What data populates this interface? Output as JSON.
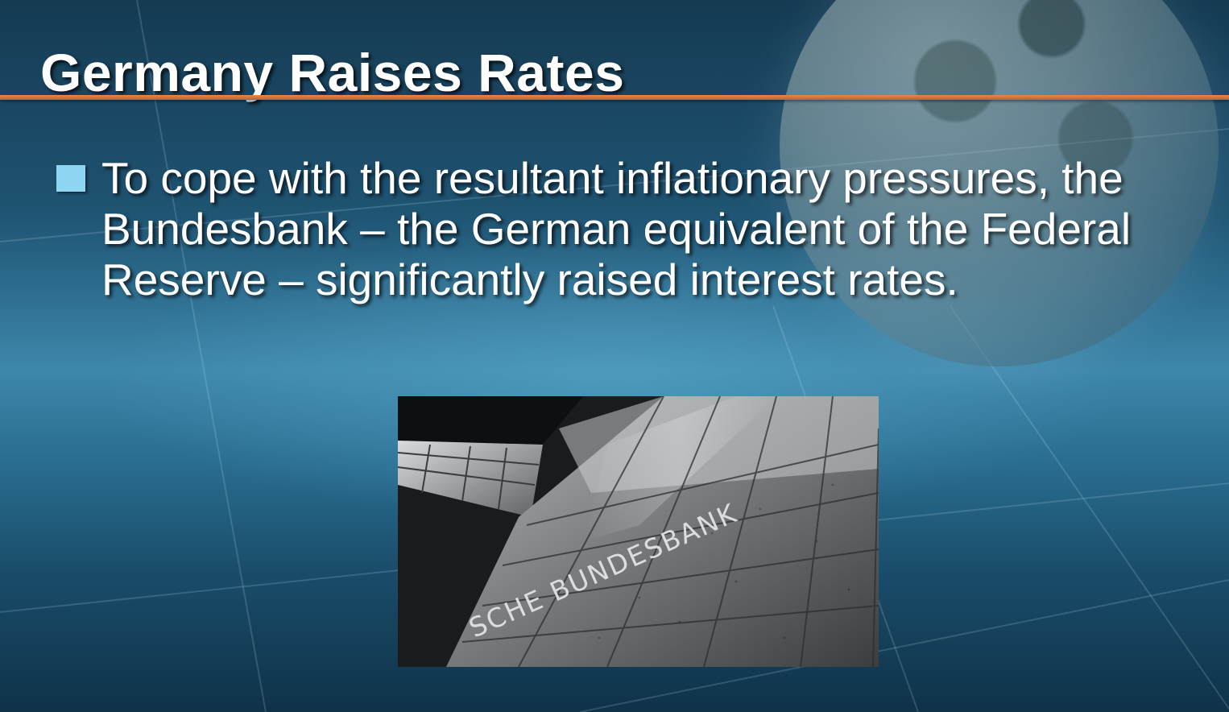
{
  "slide": {
    "title": "Germany Raises Rates",
    "bullets": [
      {
        "text": "To cope with the resultant inflationary pressures, the Bundesbank – the German equivalent of the Federal Reserve – significantly raised interest rates."
      }
    ],
    "photo": {
      "engraving": "SCHE BUNDESBANK"
    }
  },
  "colors": {
    "title_rule": "#c4602a",
    "bullet_marker": "#8fd6f2",
    "text": "#ffffff"
  }
}
